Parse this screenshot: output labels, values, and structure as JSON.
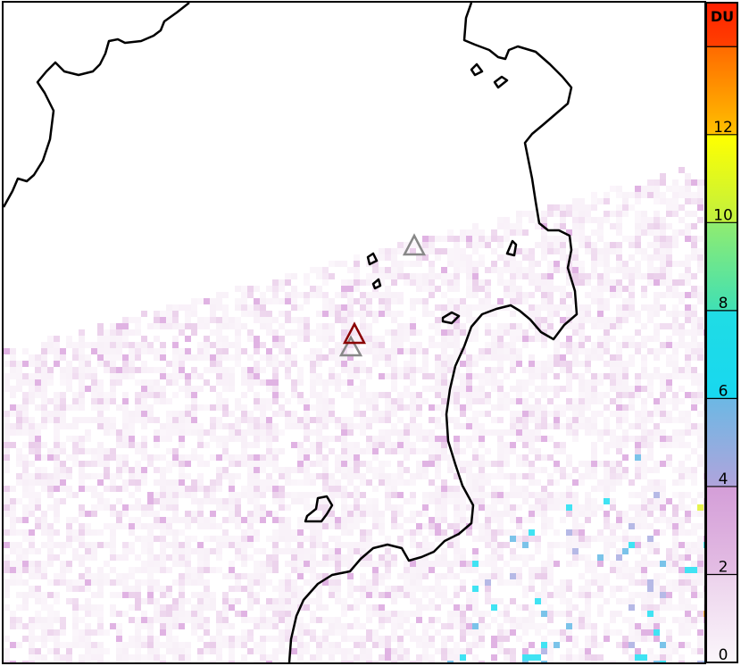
{
  "colorbar": {
    "unit_label": "DU",
    "tick_labels": [
      "0",
      "2",
      "4",
      "6",
      "8",
      "10",
      "12"
    ],
    "range": [
      0,
      15
    ],
    "colors": [
      "#f8f0f8",
      "#e6c4e6",
      "#d8a0dc",
      "#a4a8e0",
      "#5ab4e4",
      "#10dcf0",
      "#40e0b0",
      "#80e870",
      "#e0f020",
      "#ffe000",
      "#ffa000",
      "#ff6000",
      "#ff2000"
    ]
  },
  "markers": {
    "gray_color": "#888888",
    "red_color": "#8b0000"
  },
  "coastline_color": "#000000"
}
